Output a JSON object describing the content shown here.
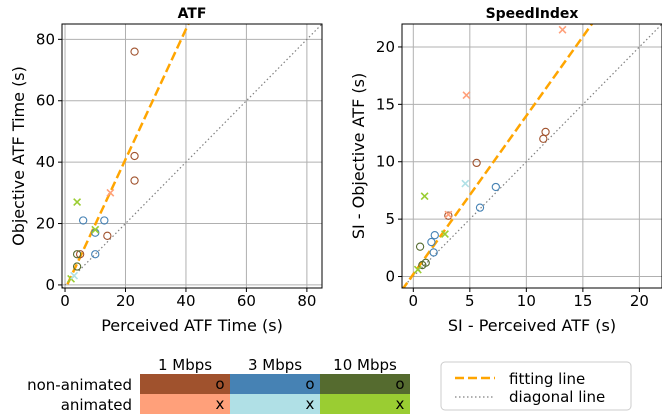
{
  "chart_data": [
    {
      "type": "scatter",
      "title": "ATF",
      "xlabel": "Perceived ATF Time (s)",
      "ylabel": "Objective ATF Time (s)",
      "xlim": [
        -1,
        85
      ],
      "ylim": [
        -1,
        85
      ],
      "xticks": [
        0,
        20,
        40,
        60,
        80
      ],
      "yticks": [
        0,
        20,
        40,
        60,
        80
      ],
      "grid": true,
      "fit_line": {
        "slope": 2.12,
        "intercept": -1.5
      },
      "diagonal_line": true,
      "points": [
        {
          "x": 23,
          "y": 76,
          "bw": "1 Mbps",
          "kind": "non-animated"
        },
        {
          "x": 23,
          "y": 42,
          "bw": "1 Mbps",
          "kind": "non-animated"
        },
        {
          "x": 23,
          "y": 34,
          "bw": "1 Mbps",
          "kind": "non-animated"
        },
        {
          "x": 14,
          "y": 16,
          "bw": "1 Mbps",
          "kind": "non-animated"
        },
        {
          "x": 5,
          "y": 10,
          "bw": "1 Mbps",
          "kind": "non-animated"
        },
        {
          "x": 4,
          "y": 10,
          "bw": "10 Mbps",
          "kind": "non-animated"
        },
        {
          "x": 4,
          "y": 6,
          "bw": "10 Mbps",
          "kind": "non-animated"
        },
        {
          "x": 6,
          "y": 21,
          "bw": "3 Mbps",
          "kind": "non-animated"
        },
        {
          "x": 13,
          "y": 21,
          "bw": "3 Mbps",
          "kind": "non-animated"
        },
        {
          "x": 10,
          "y": 10,
          "bw": "3 Mbps",
          "kind": "non-animated"
        },
        {
          "x": 10,
          "y": 17,
          "bw": "3 Mbps",
          "kind": "non-animated"
        },
        {
          "x": 15,
          "y": 30,
          "bw": "1 Mbps",
          "kind": "animated"
        },
        {
          "x": 4,
          "y": 27,
          "bw": "10 Mbps",
          "kind": "animated"
        },
        {
          "x": 10,
          "y": 18,
          "bw": "10 Mbps",
          "kind": "animated"
        },
        {
          "x": 2,
          "y": 2,
          "bw": "10 Mbps",
          "kind": "animated"
        },
        {
          "x": 3,
          "y": 3,
          "bw": "3 Mbps",
          "kind": "animated"
        }
      ]
    },
    {
      "type": "scatter",
      "title": "SpeedIndex",
      "xlabel": "SI - Perceived ATF (s)",
      "ylabel": "SI - Objective ATF (s)",
      "xlim": [
        -1,
        22
      ],
      "ylim": [
        -1,
        22
      ],
      "xticks": [
        0,
        5,
        10,
        15,
        20
      ],
      "yticks": [
        0,
        5,
        10,
        15,
        20
      ],
      "grid": true,
      "fit_line": {
        "slope": 1.38,
        "intercept": 0.2
      },
      "diagonal_line": true,
      "points": [
        {
          "x": 5.6,
          "y": 9.9,
          "bw": "1 Mbps",
          "kind": "non-animated"
        },
        {
          "x": 11.5,
          "y": 12,
          "bw": "1 Mbps",
          "kind": "non-animated"
        },
        {
          "x": 11.7,
          "y": 12.6,
          "bw": "1 Mbps",
          "kind": "non-animated"
        },
        {
          "x": 3.1,
          "y": 5.3,
          "bw": "1 Mbps",
          "kind": "non-animated"
        },
        {
          "x": 0.6,
          "y": 2.6,
          "bw": "10 Mbps",
          "kind": "non-animated"
        },
        {
          "x": 1.1,
          "y": 1.2,
          "bw": "10 Mbps",
          "kind": "non-animated"
        },
        {
          "x": 0.8,
          "y": 1.0,
          "bw": "10 Mbps",
          "kind": "non-animated"
        },
        {
          "x": 7.3,
          "y": 7.8,
          "bw": "3 Mbps",
          "kind": "non-animated"
        },
        {
          "x": 5.9,
          "y": 6.0,
          "bw": "3 Mbps",
          "kind": "non-animated"
        },
        {
          "x": 1.9,
          "y": 3.6,
          "bw": "3 Mbps",
          "kind": "non-animated"
        },
        {
          "x": 1.6,
          "y": 3.0,
          "bw": "3 Mbps",
          "kind": "non-animated"
        },
        {
          "x": 1.8,
          "y": 2.1,
          "bw": "3 Mbps",
          "kind": "non-animated"
        },
        {
          "x": 13.2,
          "y": 21.5,
          "bw": "1 Mbps",
          "kind": "animated"
        },
        {
          "x": 4.7,
          "y": 15.8,
          "bw": "1 Mbps",
          "kind": "animated"
        },
        {
          "x": 3.1,
          "y": 5.4,
          "bw": "1 Mbps",
          "kind": "animated"
        },
        {
          "x": 4.6,
          "y": 8.1,
          "bw": "3 Mbps",
          "kind": "animated"
        },
        {
          "x": 1.0,
          "y": 7.0,
          "bw": "10 Mbps",
          "kind": "animated"
        },
        {
          "x": 2.8,
          "y": 3.7,
          "bw": "10 Mbps",
          "kind": "animated"
        },
        {
          "x": 0.4,
          "y": 0.6,
          "bw": "10 Mbps",
          "kind": "animated"
        }
      ]
    }
  ],
  "colors": {
    "non-animated": {
      "1 Mbps": "#a0522d",
      "3 Mbps": "#4682b4",
      "10 Mbps": "#556b2f"
    },
    "animated": {
      "1 Mbps": "#ffa07a",
      "3 Mbps": "#b0e0e6",
      "10 Mbps": "#9acd32"
    },
    "fit_line": "#ffa500",
    "diagonal_line": "#808080"
  },
  "legend_table": {
    "columns": [
      "1 Mbps",
      "3 Mbps",
      "10 Mbps"
    ],
    "rows": [
      {
        "label": "non-animated",
        "marker": "o"
      },
      {
        "label": "animated",
        "marker": "x"
      }
    ]
  },
  "line_legend": {
    "fit_label": "fitting line",
    "diag_label": "diagonal line"
  }
}
